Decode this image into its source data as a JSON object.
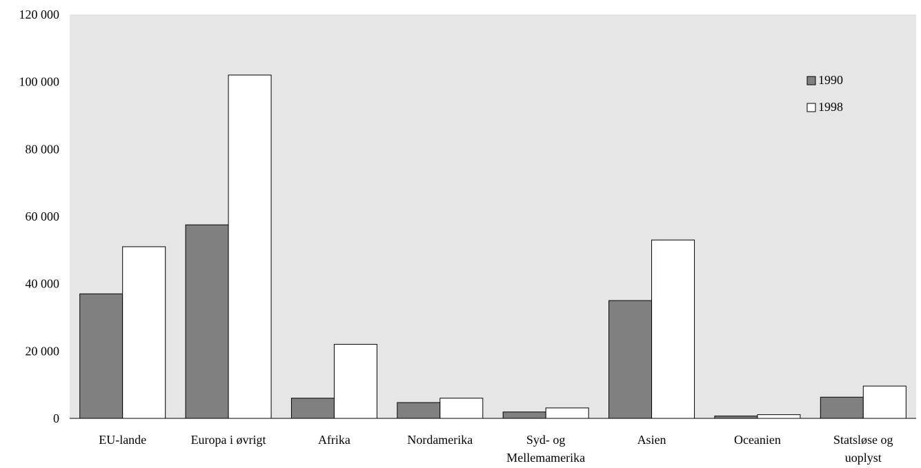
{
  "chart_data": {
    "type": "bar",
    "categories": [
      [
        "EU-lande"
      ],
      [
        "Europa i øvrigt"
      ],
      [
        "Afrika"
      ],
      [
        "Nordamerika"
      ],
      [
        "Syd- og",
        "Mellemamerika"
      ],
      [
        "Asien"
      ],
      [
        "Oceanien"
      ],
      [
        "Statsløse og",
        "uoplyst"
      ]
    ],
    "series": [
      {
        "name": "1990",
        "color": "#808080",
        "values": [
          37000,
          57500,
          6000,
          4700,
          1900,
          35000,
          700,
          6300
        ]
      },
      {
        "name": "1998",
        "color": "#ffffff",
        "values": [
          51000,
          102000,
          22000,
          6000,
          3100,
          53000,
          1100,
          9600
        ]
      }
    ],
    "ylim": [
      0,
      120000
    ],
    "yticks": [
      0,
      20000,
      40000,
      60000,
      80000,
      100000,
      120000
    ],
    "ytick_labels": [
      "0",
      "20 000",
      "40 000",
      "60 000",
      "80 000",
      "100 000",
      "120 000"
    ],
    "plot_background": "#e6e6e6",
    "legend_position": "top-right",
    "grid": false
  }
}
